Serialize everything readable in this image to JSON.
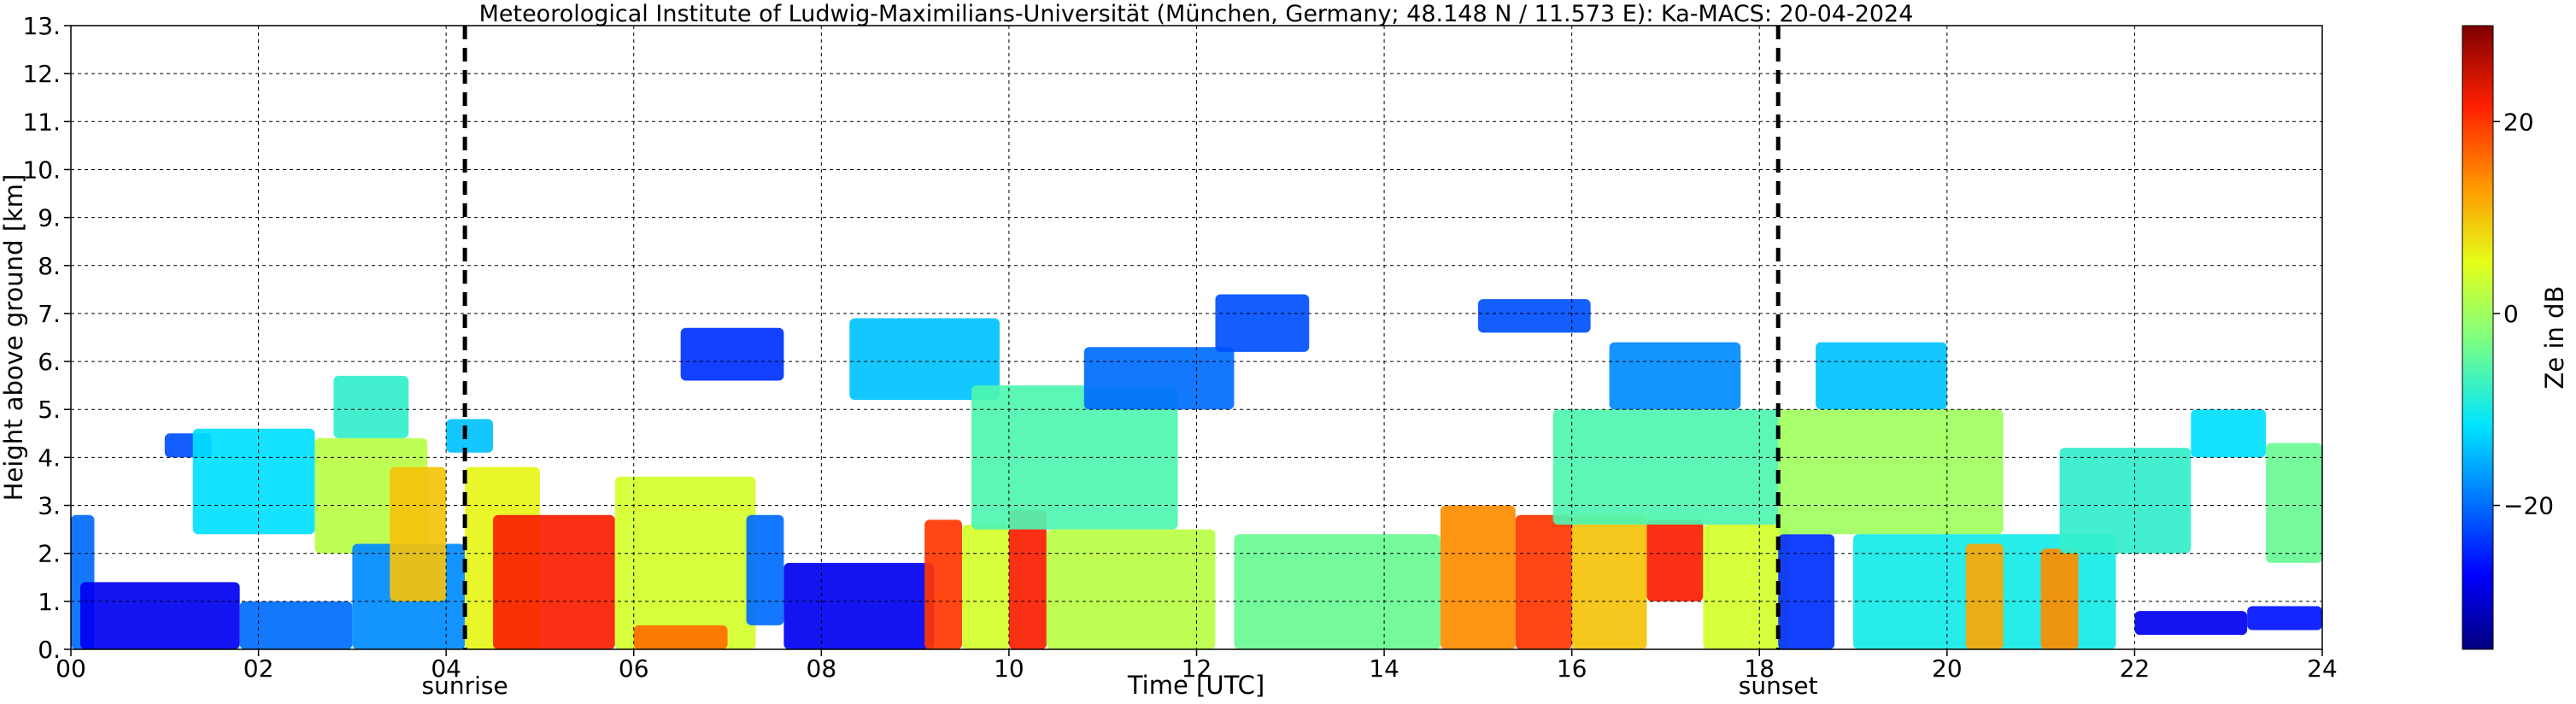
{
  "chart_data": {
    "type": "heatmap",
    "title": "Meteorological Institute of Ludwig-Maximilians-Universität (München, Germany; 48.148 N / 11.573 E):    Ka-MACS: 20-04-2024",
    "xlabel": "Time [UTC]",
    "ylabel": "Height above ground [km]",
    "xlim": [
      0,
      24
    ],
    "ylim": [
      0,
      13
    ],
    "x_ticks": [
      "00",
      "02",
      "04",
      "06",
      "08",
      "10",
      "12",
      "14",
      "16",
      "18",
      "20",
      "22",
      "24"
    ],
    "y_ticks": [
      "0.",
      "1.",
      "2.",
      "3.",
      "4.",
      "5.",
      "6.",
      "7.",
      "8.",
      "9.",
      "10.",
      "11.",
      "12.",
      "13."
    ],
    "grid": true,
    "colorbar": {
      "label": "Ze in dB",
      "range": [
        -35,
        30
      ],
      "ticks": [
        "20",
        "0",
        "−20"
      ],
      "tick_values": [
        20,
        0,
        -20
      ]
    },
    "events": [
      {
        "name": "sunrise",
        "time": 4.2
      },
      {
        "name": "sunset",
        "time": 18.2
      }
    ],
    "reflectivity_regions": [
      {
        "t0": 0.0,
        "t1": 0.25,
        "h0": 0.0,
        "h1": 2.8,
        "ze": -20
      },
      {
        "t0": 0.1,
        "t1": 1.8,
        "h0": 0.0,
        "h1": 1.4,
        "ze": -28
      },
      {
        "t0": 1.0,
        "t1": 1.5,
        "h0": 4.0,
        "h1": 4.5,
        "ze": -22
      },
      {
        "t0": 1.3,
        "t1": 2.6,
        "h0": 2.4,
        "h1": 4.6,
        "ze": -12
      },
      {
        "t0": 1.8,
        "t1": 3.0,
        "h0": 0.0,
        "h1": 1.0,
        "ze": -20
      },
      {
        "t0": 2.6,
        "t1": 3.8,
        "h0": 2.0,
        "h1": 4.4,
        "ze": 2
      },
      {
        "t0": 2.8,
        "t1": 3.6,
        "h0": 4.4,
        "h1": 5.7,
        "ze": -8
      },
      {
        "t0": 3.0,
        "t1": 4.2,
        "h0": 0.0,
        "h1": 2.2,
        "ze": -18
      },
      {
        "t0": 3.4,
        "t1": 4.0,
        "h0": 1.0,
        "h1": 3.8,
        "ze": 10
      },
      {
        "t0": 4.0,
        "t1": 4.5,
        "h0": 4.1,
        "h1": 4.8,
        "ze": -14
      },
      {
        "t0": 4.2,
        "t1": 5.0,
        "h0": 0.0,
        "h1": 3.8,
        "ze": 6
      },
      {
        "t0": 4.5,
        "t1": 5.8,
        "h0": 0.0,
        "h1": 2.8,
        "ze": 22
      },
      {
        "t0": 5.8,
        "t1": 7.3,
        "h0": 0.0,
        "h1": 3.6,
        "ze": 4
      },
      {
        "t0": 6.0,
        "t1": 7.0,
        "h0": 0.0,
        "h1": 0.5,
        "ze": 16
      },
      {
        "t0": 7.2,
        "t1": 7.6,
        "h0": 0.5,
        "h1": 2.8,
        "ze": -20
      },
      {
        "t0": 6.5,
        "t1": 7.6,
        "h0": 5.6,
        "h1": 6.7,
        "ze": -24
      },
      {
        "t0": 7.6,
        "t1": 9.2,
        "h0": 0.0,
        "h1": 1.8,
        "ze": -28
      },
      {
        "t0": 8.3,
        "t1": 9.9,
        "h0": 5.2,
        "h1": 6.9,
        "ze": -14
      },
      {
        "t0": 9.1,
        "t1": 9.5,
        "h0": 0.0,
        "h1": 2.7,
        "ze": 20
      },
      {
        "t0": 9.5,
        "t1": 10.0,
        "h0": 0.0,
        "h1": 2.6,
        "ze": 4
      },
      {
        "t0": 10.0,
        "t1": 10.4,
        "h0": 0.0,
        "h1": 2.9,
        "ze": 22
      },
      {
        "t0": 10.4,
        "t1": 12.2,
        "h0": 0.0,
        "h1": 2.5,
        "ze": 2
      },
      {
        "t0": 9.6,
        "t1": 11.8,
        "h0": 2.5,
        "h1": 5.5,
        "ze": -6
      },
      {
        "t0": 10.8,
        "t1": 12.4,
        "h0": 5.0,
        "h1": 6.3,
        "ze": -20
      },
      {
        "t0": 12.2,
        "t1": 13.2,
        "h0": 6.2,
        "h1": 7.4,
        "ze": -22
      },
      {
        "t0": 12.4,
        "t1": 14.6,
        "h0": 0.0,
        "h1": 2.4,
        "ze": -4
      },
      {
        "t0": 14.6,
        "t1": 15.4,
        "h0": 0.0,
        "h1": 3.0,
        "ze": 14
      },
      {
        "t0": 15.4,
        "t1": 16.0,
        "h0": 0.0,
        "h1": 2.8,
        "ze": 20
      },
      {
        "t0": 16.0,
        "t1": 16.8,
        "h0": 0.0,
        "h1": 2.8,
        "ze": 10
      },
      {
        "t0": 16.8,
        "t1": 17.4,
        "h0": 1.0,
        "h1": 2.7,
        "ze": 22
      },
      {
        "t0": 17.4,
        "t1": 18.3,
        "h0": 0.0,
        "h1": 2.6,
        "ze": 4
      },
      {
        "t0": 15.8,
        "t1": 18.2,
        "h0": 2.6,
        "h1": 5.0,
        "ze": -6
      },
      {
        "t0": 16.4,
        "t1": 17.8,
        "h0": 5.0,
        "h1": 6.4,
        "ze": -18
      },
      {
        "t0": 15.0,
        "t1": 16.2,
        "h0": 6.6,
        "h1": 7.3,
        "ze": -22
      },
      {
        "t0": 18.2,
        "t1": 18.8,
        "h0": 0.0,
        "h1": 2.4,
        "ze": -24
      },
      {
        "t0": 18.2,
        "t1": 20.6,
        "h0": 2.4,
        "h1": 5.0,
        "ze": 0
      },
      {
        "t0": 18.6,
        "t1": 20.0,
        "h0": 5.0,
        "h1": 6.4,
        "ze": -14
      },
      {
        "t0": 19.0,
        "t1": 21.8,
        "h0": 0.0,
        "h1": 2.4,
        "ze": -10
      },
      {
        "t0": 20.2,
        "t1": 20.6,
        "h0": 0.0,
        "h1": 2.2,
        "ze": 12
      },
      {
        "t0": 21.0,
        "t1": 21.4,
        "h0": 0.0,
        "h1": 2.1,
        "ze": 14
      },
      {
        "t0": 21.2,
        "t1": 22.6,
        "h0": 2.0,
        "h1": 4.2,
        "ze": -8
      },
      {
        "t0": 22.0,
        "t1": 23.2,
        "h0": 0.3,
        "h1": 0.8,
        "ze": -28
      },
      {
        "t0": 22.6,
        "t1": 23.4,
        "h0": 4.0,
        "h1": 5.0,
        "ze": -12
      },
      {
        "t0": 23.4,
        "t1": 24.0,
        "h0": 1.8,
        "h1": 4.3,
        "ze": -4
      },
      {
        "t0": 23.2,
        "t1": 24.0,
        "h0": 0.4,
        "h1": 0.9,
        "ze": -26
      }
    ]
  }
}
